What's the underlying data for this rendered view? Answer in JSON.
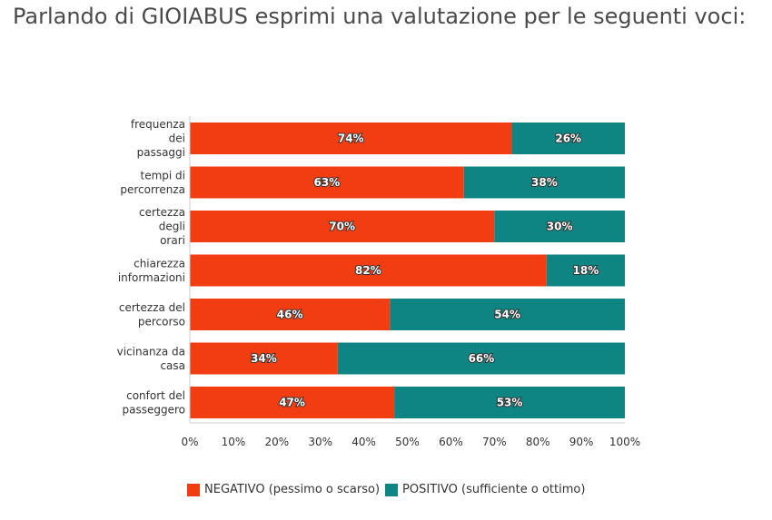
{
  "title": "Parlando di GIOIABUS esprimi una valutazione per le seguenti voci:",
  "chart_data": {
    "type": "bar",
    "orientation": "horizontal",
    "stacked": true,
    "categories": [
      [
        "frequenza",
        "dei",
        "passaggi"
      ],
      [
        "tempi di",
        "percorrenza"
      ],
      [
        "certezza",
        "degli",
        "orari"
      ],
      [
        "chiarezza",
        "informazioni"
      ],
      [
        "certezza del",
        "percorso"
      ],
      [
        "vicinanza da",
        "casa"
      ],
      [
        "confort del",
        "passeggero"
      ]
    ],
    "series": [
      {
        "name": "NEGATIVO (pessimo o scarso)",
        "color": "#f23d12",
        "values": [
          74,
          63,
          70,
          82,
          46,
          34,
          47
        ],
        "labels": [
          "74%",
          "63%",
          "70%",
          "82%",
          "46%",
          "34%",
          "47%"
        ]
      },
      {
        "name": "POSITIVO (sufficiente o ottimo)",
        "color": "#0e8483",
        "values": [
          26,
          38,
          30,
          18,
          54,
          66,
          53
        ],
        "labels": [
          "26%",
          "38%",
          "30%",
          "18%",
          "54%",
          "66%",
          "53%"
        ]
      }
    ],
    "xlim": [
      0,
      100
    ],
    "xticks": [
      "0%",
      "10%",
      "20%",
      "30%",
      "40%",
      "50%",
      "60%",
      "70%",
      "80%",
      "90%",
      "100%"
    ],
    "legend_position": "bottom",
    "grid": false
  }
}
